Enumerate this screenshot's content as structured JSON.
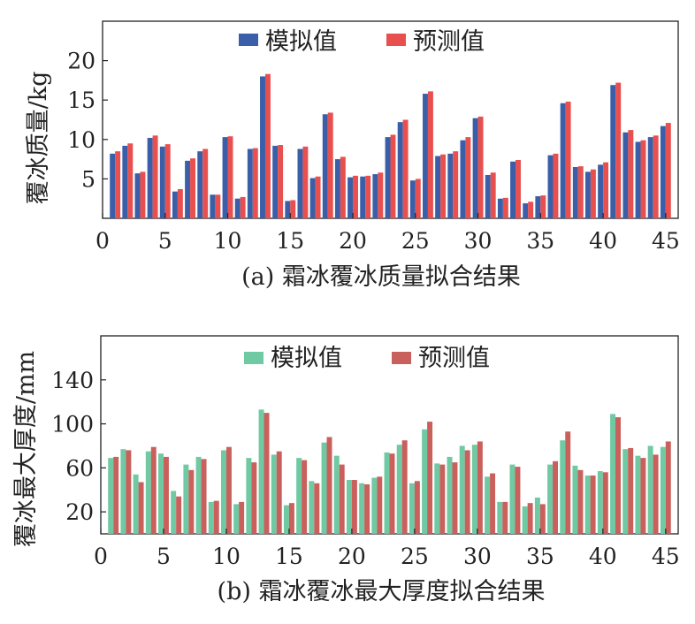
{
  "colors": {
    "mass_sim": "#3a5fa8",
    "mass_pred": "#e8504f",
    "thick_sim": "#6fc9a3",
    "thick_pred": "#c9605c",
    "axis": "#222222"
  },
  "chart_data": [
    {
      "type": "bar",
      "title": "(a) 霜冰覆冰质量拟合结果",
      "xlabel": "",
      "ylabel": "覆冰质量/kg",
      "xlim": [
        0,
        46
      ],
      "ylim": [
        0,
        25
      ],
      "xticks": [
        0,
        5,
        10,
        15,
        20,
        25,
        30,
        35,
        40,
        45
      ],
      "yticks": [
        5,
        10,
        15,
        20
      ],
      "legend_position": "top-center",
      "x": [
        1,
        2,
        3,
        4,
        5,
        6,
        7,
        8,
        9,
        10,
        11,
        12,
        13,
        14,
        15,
        16,
        17,
        18,
        19,
        20,
        21,
        22,
        23,
        24,
        25,
        26,
        27,
        28,
        29,
        30,
        31,
        32,
        33,
        34,
        35,
        36,
        37,
        38,
        39,
        40,
        41,
        42,
        43,
        44,
        45
      ],
      "series": [
        {
          "name": "模拟值",
          "color_key": "mass_sim",
          "values": [
            8.2,
            9.2,
            5.7,
            10.2,
            9.1,
            3.4,
            7.3,
            8.5,
            3.0,
            10.3,
            2.5,
            8.8,
            18.0,
            9.2,
            2.2,
            8.8,
            5.1,
            13.2,
            7.5,
            5.2,
            5.3,
            5.6,
            10.3,
            12.2,
            4.8,
            15.8,
            7.9,
            8.2,
            9.9,
            12.7,
            5.5,
            2.5,
            7.2,
            1.9,
            2.8,
            8.0,
            14.6,
            6.5,
            5.9,
            6.8,
            16.9,
            10.9,
            9.7,
            10.3,
            11.7
          ]
        },
        {
          "name": "预测值",
          "color_key": "mass_pred",
          "values": [
            8.5,
            9.5,
            5.9,
            10.5,
            9.4,
            3.7,
            7.6,
            8.8,
            3.0,
            10.4,
            2.7,
            8.9,
            18.3,
            9.3,
            2.3,
            9.1,
            5.3,
            13.4,
            7.8,
            5.4,
            5.4,
            5.8,
            10.6,
            12.5,
            5.0,
            16.1,
            8.1,
            8.5,
            10.3,
            12.9,
            5.8,
            2.6,
            7.4,
            2.1,
            2.9,
            8.2,
            14.8,
            6.6,
            6.2,
            7.1,
            17.2,
            11.2,
            9.9,
            10.5,
            12.1
          ]
        }
      ]
    },
    {
      "type": "bar",
      "title": "(b) 霜冰覆冰最大厚度拟合结果",
      "xlabel": "",
      "ylabel": "覆冰最大厚度/mm",
      "xlim": [
        0,
        46
      ],
      "ylim": [
        0,
        180
      ],
      "xticks": [
        0,
        5,
        10,
        15,
        20,
        25,
        30,
        35,
        40,
        45
      ],
      "yticks": [
        20,
        60,
        100,
        140
      ],
      "legend_position": "top-center",
      "x": [
        1,
        2,
        3,
        4,
        5,
        6,
        7,
        8,
        9,
        10,
        11,
        12,
        13,
        14,
        15,
        16,
        17,
        18,
        19,
        20,
        21,
        22,
        23,
        24,
        25,
        26,
        27,
        28,
        29,
        30,
        31,
        32,
        33,
        34,
        35,
        36,
        37,
        38,
        39,
        40,
        41,
        42,
        43,
        44,
        45
      ],
      "series": [
        {
          "name": "模拟值",
          "color_key": "thick_sim",
          "values": [
            69,
            77,
            54,
            75,
            73,
            39,
            63,
            70,
            29,
            76,
            27,
            69,
            113,
            72,
            26,
            69,
            48,
            83,
            71,
            49,
            46,
            51,
            74,
            81,
            46,
            95,
            64,
            70,
            80,
            81,
            52,
            29,
            63,
            25,
            33,
            63,
            85,
            62,
            53,
            57,
            109,
            77,
            71,
            80,
            79
          ]
        },
        {
          "name": "预测值",
          "color_key": "thick_pred",
          "values": [
            70,
            76,
            47,
            79,
            70,
            34,
            58,
            68,
            30,
            79,
            29,
            65,
            110,
            75,
            28,
            67,
            46,
            88,
            63,
            49,
            45,
            52,
            73,
            85,
            48,
            102,
            63,
            65,
            76,
            84,
            55,
            29,
            61,
            28,
            27,
            66,
            93,
            58,
            53,
            56,
            106,
            78,
            69,
            72,
            84
          ]
        }
      ]
    }
  ]
}
